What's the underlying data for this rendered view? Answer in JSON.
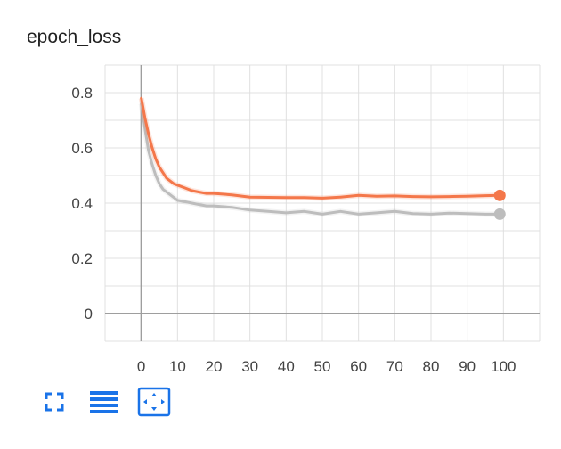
{
  "title": "epoch_loss",
  "toolbar": {
    "icons": [
      "fullscreen-icon",
      "list-lines-icon",
      "fit-domain-icon"
    ],
    "accent_color": "#1a73e8"
  },
  "chart_data": {
    "type": "line",
    "title": "epoch_loss",
    "xlabel": "",
    "ylabel": "",
    "xlim": [
      -10,
      110
    ],
    "ylim": [
      -0.1,
      0.9
    ],
    "x_ticks": [
      0,
      10,
      20,
      30,
      40,
      50,
      60,
      70,
      80,
      90,
      100
    ],
    "y_ticks": [
      0,
      0.2,
      0.4,
      0.6,
      0.8
    ],
    "y_tick_labels": [
      "0",
      "0.2",
      "0.4",
      "0.6",
      "0.8"
    ],
    "grid": true,
    "series": [
      {
        "color": "#f4774a",
        "x": [
          0,
          1,
          2,
          3,
          4,
          5,
          6,
          7,
          8,
          9,
          10,
          12,
          14,
          16,
          18,
          20,
          25,
          30,
          35,
          40,
          45,
          50,
          55,
          60,
          65,
          70,
          75,
          80,
          85,
          90,
          95,
          99
        ],
        "values": [
          0.78,
          0.71,
          0.65,
          0.6,
          0.56,
          0.53,
          0.51,
          0.49,
          0.48,
          0.47,
          0.465,
          0.455,
          0.445,
          0.44,
          0.435,
          0.435,
          0.43,
          0.422,
          0.421,
          0.42,
          0.42,
          0.418,
          0.422,
          0.428,
          0.425,
          0.426,
          0.424,
          0.423,
          0.424,
          0.425,
          0.427,
          0.428
        ]
      },
      {
        "color": "#bdbdbd",
        "x": [
          0,
          1,
          2,
          3,
          4,
          5,
          6,
          7,
          8,
          9,
          10,
          12,
          14,
          16,
          18,
          20,
          25,
          30,
          35,
          40,
          45,
          50,
          55,
          60,
          65,
          70,
          75,
          80,
          85,
          90,
          95,
          99
        ],
        "values": [
          0.76,
          0.67,
          0.59,
          0.54,
          0.5,
          0.47,
          0.45,
          0.44,
          0.43,
          0.42,
          0.41,
          0.405,
          0.4,
          0.395,
          0.39,
          0.39,
          0.385,
          0.375,
          0.37,
          0.365,
          0.37,
          0.36,
          0.37,
          0.36,
          0.365,
          0.37,
          0.362,
          0.36,
          0.364,
          0.362,
          0.36,
          0.36
        ]
      }
    ]
  }
}
